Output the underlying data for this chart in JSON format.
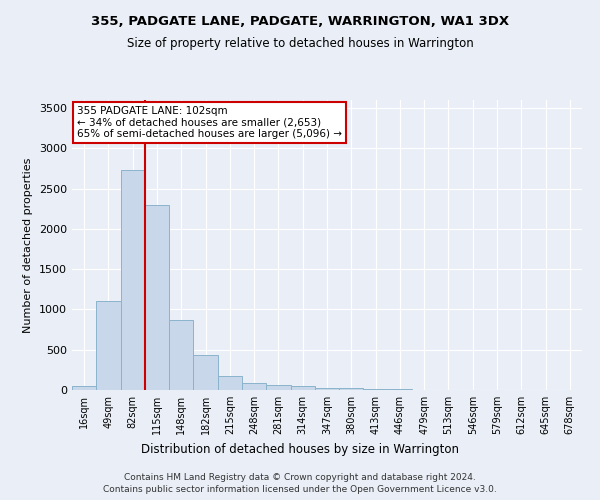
{
  "title": "355, PADGATE LANE, PADGATE, WARRINGTON, WA1 3DX",
  "subtitle": "Size of property relative to detached houses in Warrington",
  "xlabel": "Distribution of detached houses by size in Warrington",
  "ylabel": "Number of detached properties",
  "bar_values": [
    50,
    1100,
    2730,
    2300,
    870,
    430,
    170,
    90,
    60,
    50,
    30,
    20,
    15,
    10,
    5,
    3,
    2,
    2,
    1,
    1,
    0
  ],
  "bar_labels": [
    "16sqm",
    "49sqm",
    "82sqm",
    "115sqm",
    "148sqm",
    "182sqm",
    "215sqm",
    "248sqm",
    "281sqm",
    "314sqm",
    "347sqm",
    "380sqm",
    "413sqm",
    "446sqm",
    "479sqm",
    "513sqm",
    "546sqm",
    "579sqm",
    "612sqm",
    "645sqm",
    "678sqm"
  ],
  "bar_color": "#c8d8ea",
  "bar_edge_color": "#8ab4cc",
  "vline_x": 2.5,
  "vline_color": "#cc0000",
  "annotation_text": "355 PADGATE LANE: 102sqm\n← 34% of detached houses are smaller (2,653)\n65% of semi-detached houses are larger (5,096) →",
  "annotation_box_facecolor": "#ffffff",
  "annotation_box_edgecolor": "#cc0000",
  "ylim": [
    0,
    3600
  ],
  "yticks": [
    0,
    500,
    1000,
    1500,
    2000,
    2500,
    3000,
    3500
  ],
  "background_color": "#eaeff7",
  "grid_color": "#ffffff",
  "footer_line1": "Contains HM Land Registry data © Crown copyright and database right 2024.",
  "footer_line2": "Contains public sector information licensed under the Open Government Licence v3.0."
}
